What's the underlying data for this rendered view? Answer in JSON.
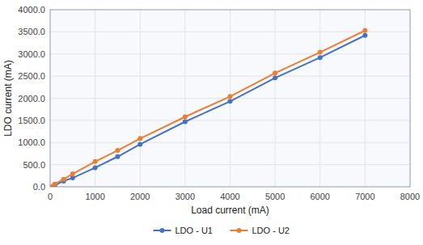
{
  "chart_data": {
    "type": "line",
    "x_label": "Load current (mA)",
    "y_label": "LDO current (mA)",
    "x": [
      0,
      100,
      300,
      500,
      1000,
      1500,
      2000,
      3000,
      4000,
      5000,
      6000,
      7000
    ],
    "series": [
      {
        "name": "LDO - U1",
        "color": "#4472C4",
        "marker": "circle",
        "values": [
          0,
          30,
          130,
          200,
          430,
          680,
          960,
          1470,
          1930,
          2460,
          2920,
          3420
        ]
      },
      {
        "name": "LDO - U2",
        "color": "#ED7D31",
        "marker": "circle",
        "values": [
          0,
          60,
          170,
          290,
          570,
          820,
          1090,
          1580,
          2040,
          2570,
          3040,
          3530
        ]
      }
    ],
    "xlim": [
      0,
      8000
    ],
    "ylim": [
      0,
      4000
    ],
    "xticks": [
      0,
      1000,
      2000,
      3000,
      4000,
      5000,
      6000,
      7000,
      8000
    ],
    "yticks": [
      {
        "value": 0,
        "label": "0.0"
      },
      {
        "value": 500,
        "label": "500.0"
      },
      {
        "value": 1000,
        "label": "1000.0"
      },
      {
        "value": 1500,
        "label": "1500.0"
      },
      {
        "value": 2000,
        "label": "2000.0"
      },
      {
        "value": 2500,
        "label": "2500.0"
      },
      {
        "value": 3000,
        "label": "3000.0"
      },
      {
        "value": 3500,
        "label": "3500.0"
      },
      {
        "value": 4000,
        "label": "4000.0"
      }
    ],
    "grid": true,
    "legend": "bottom"
  }
}
